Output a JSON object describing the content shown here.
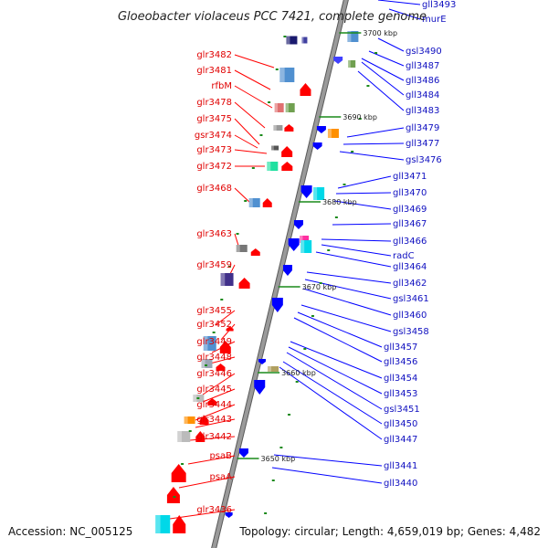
{
  "title": "Gloeobacter violaceus PCC 7421, complete genome",
  "footer": {
    "accession": "Accession: NC_005125",
    "summary": "Topology: circular; Length: 4,659,019 bp; Genes: 4,482"
  },
  "colors": {
    "backbone": "#9a9a9a",
    "left_label": "#e00000",
    "right_label": "#1010c0",
    "leader_left": "#ff0000",
    "leader_right": "#0000ff",
    "tick": "#1a8a1a"
  },
  "kbp_markers": [
    "3700 kbp",
    "3690 kbp",
    "3680 kbp",
    "3670 kbp",
    "3660 kbp",
    "3650 kbp"
  ],
  "left_labels": [
    "glr3482",
    "glr3481",
    "rfbM",
    "glr3478",
    "glr3475",
    "gsr3474",
    "glr3473",
    "glr3472",
    "glr3468",
    "glr3463",
    "glr3459",
    "glr3455",
    "glr3452",
    "glr3449",
    "glr3448",
    "glr3446",
    "glr3445",
    "glr3444",
    "glr3443",
    "glr3442",
    "psaB",
    "psaA",
    "glr3436"
  ],
  "right_labels": [
    "gll3493",
    "murE",
    "gsl3490",
    "gll3487",
    "gll3486",
    "gll3484",
    "gll3483",
    "gll3479",
    "gll3477",
    "gsl3476",
    "gll3471",
    "gll3470",
    "gll3469",
    "gll3467",
    "gll3466",
    "radC",
    "gll3464",
    "gll3462",
    "gsl3461",
    "gll3460",
    "gsl3458",
    "gll3457",
    "gll3456",
    "gll3454",
    "gll3453",
    "gsl3451",
    "gll3450",
    "gll3447",
    "gll3441",
    "gll3440"
  ]
}
